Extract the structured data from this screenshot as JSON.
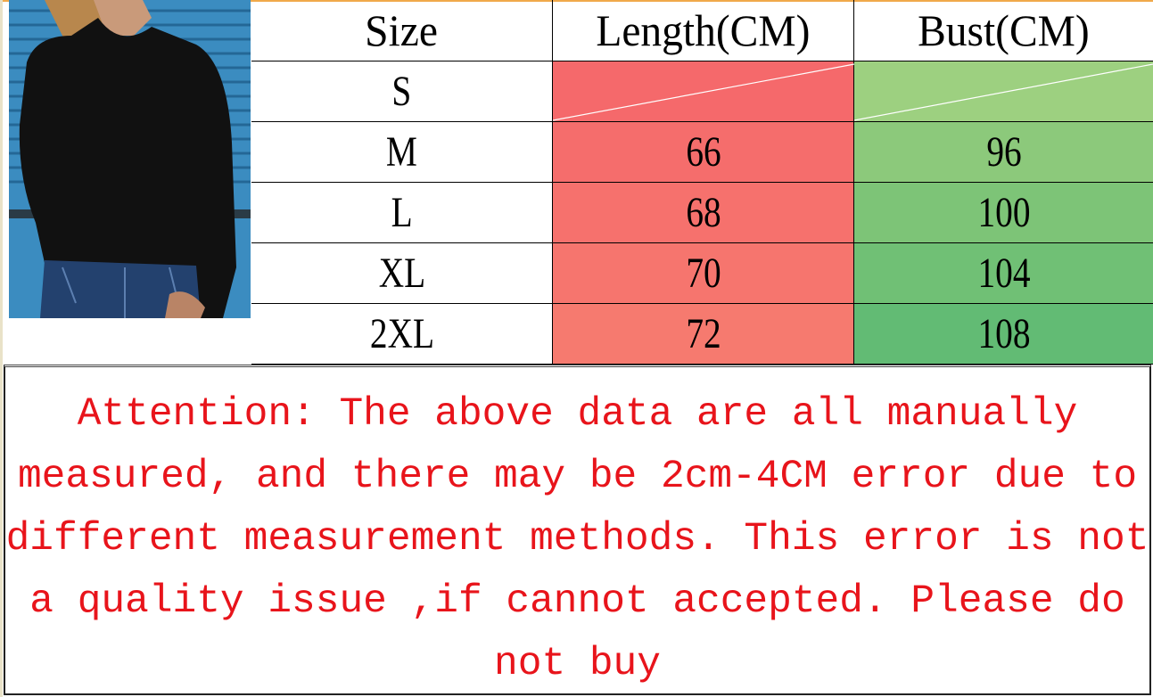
{
  "table": {
    "headers": [
      "Size",
      "Length(CM)",
      "Bust(CM)"
    ],
    "rows": [
      {
        "size": "S",
        "length": "",
        "bust": ""
      },
      {
        "size": "M",
        "length": "66",
        "bust": "96"
      },
      {
        "size": "L",
        "length": "68",
        "bust": "100"
      },
      {
        "size": "XL",
        "length": "70",
        "bust": "104"
      },
      {
        "size": "2XL",
        "length": "72",
        "bust": "108"
      }
    ]
  },
  "notice": "Attention: The above data are all manually measured, and there may be 2cm-4CM error due to different measurement methods. This error is not a quality issue ,if cannot accepted. Please do not buy",
  "colors": {
    "length_cells": [
      "#f5696b",
      "#f56d6c",
      "#f6716d",
      "#f6756e",
      "#f67a6f"
    ],
    "bust_cells": [
      "#9dd080",
      "#8cc97b",
      "#7dc477",
      "#70c075",
      "#62bb74"
    ],
    "notice_text": "#e8141b",
    "top_border": "#f0a94a"
  }
}
